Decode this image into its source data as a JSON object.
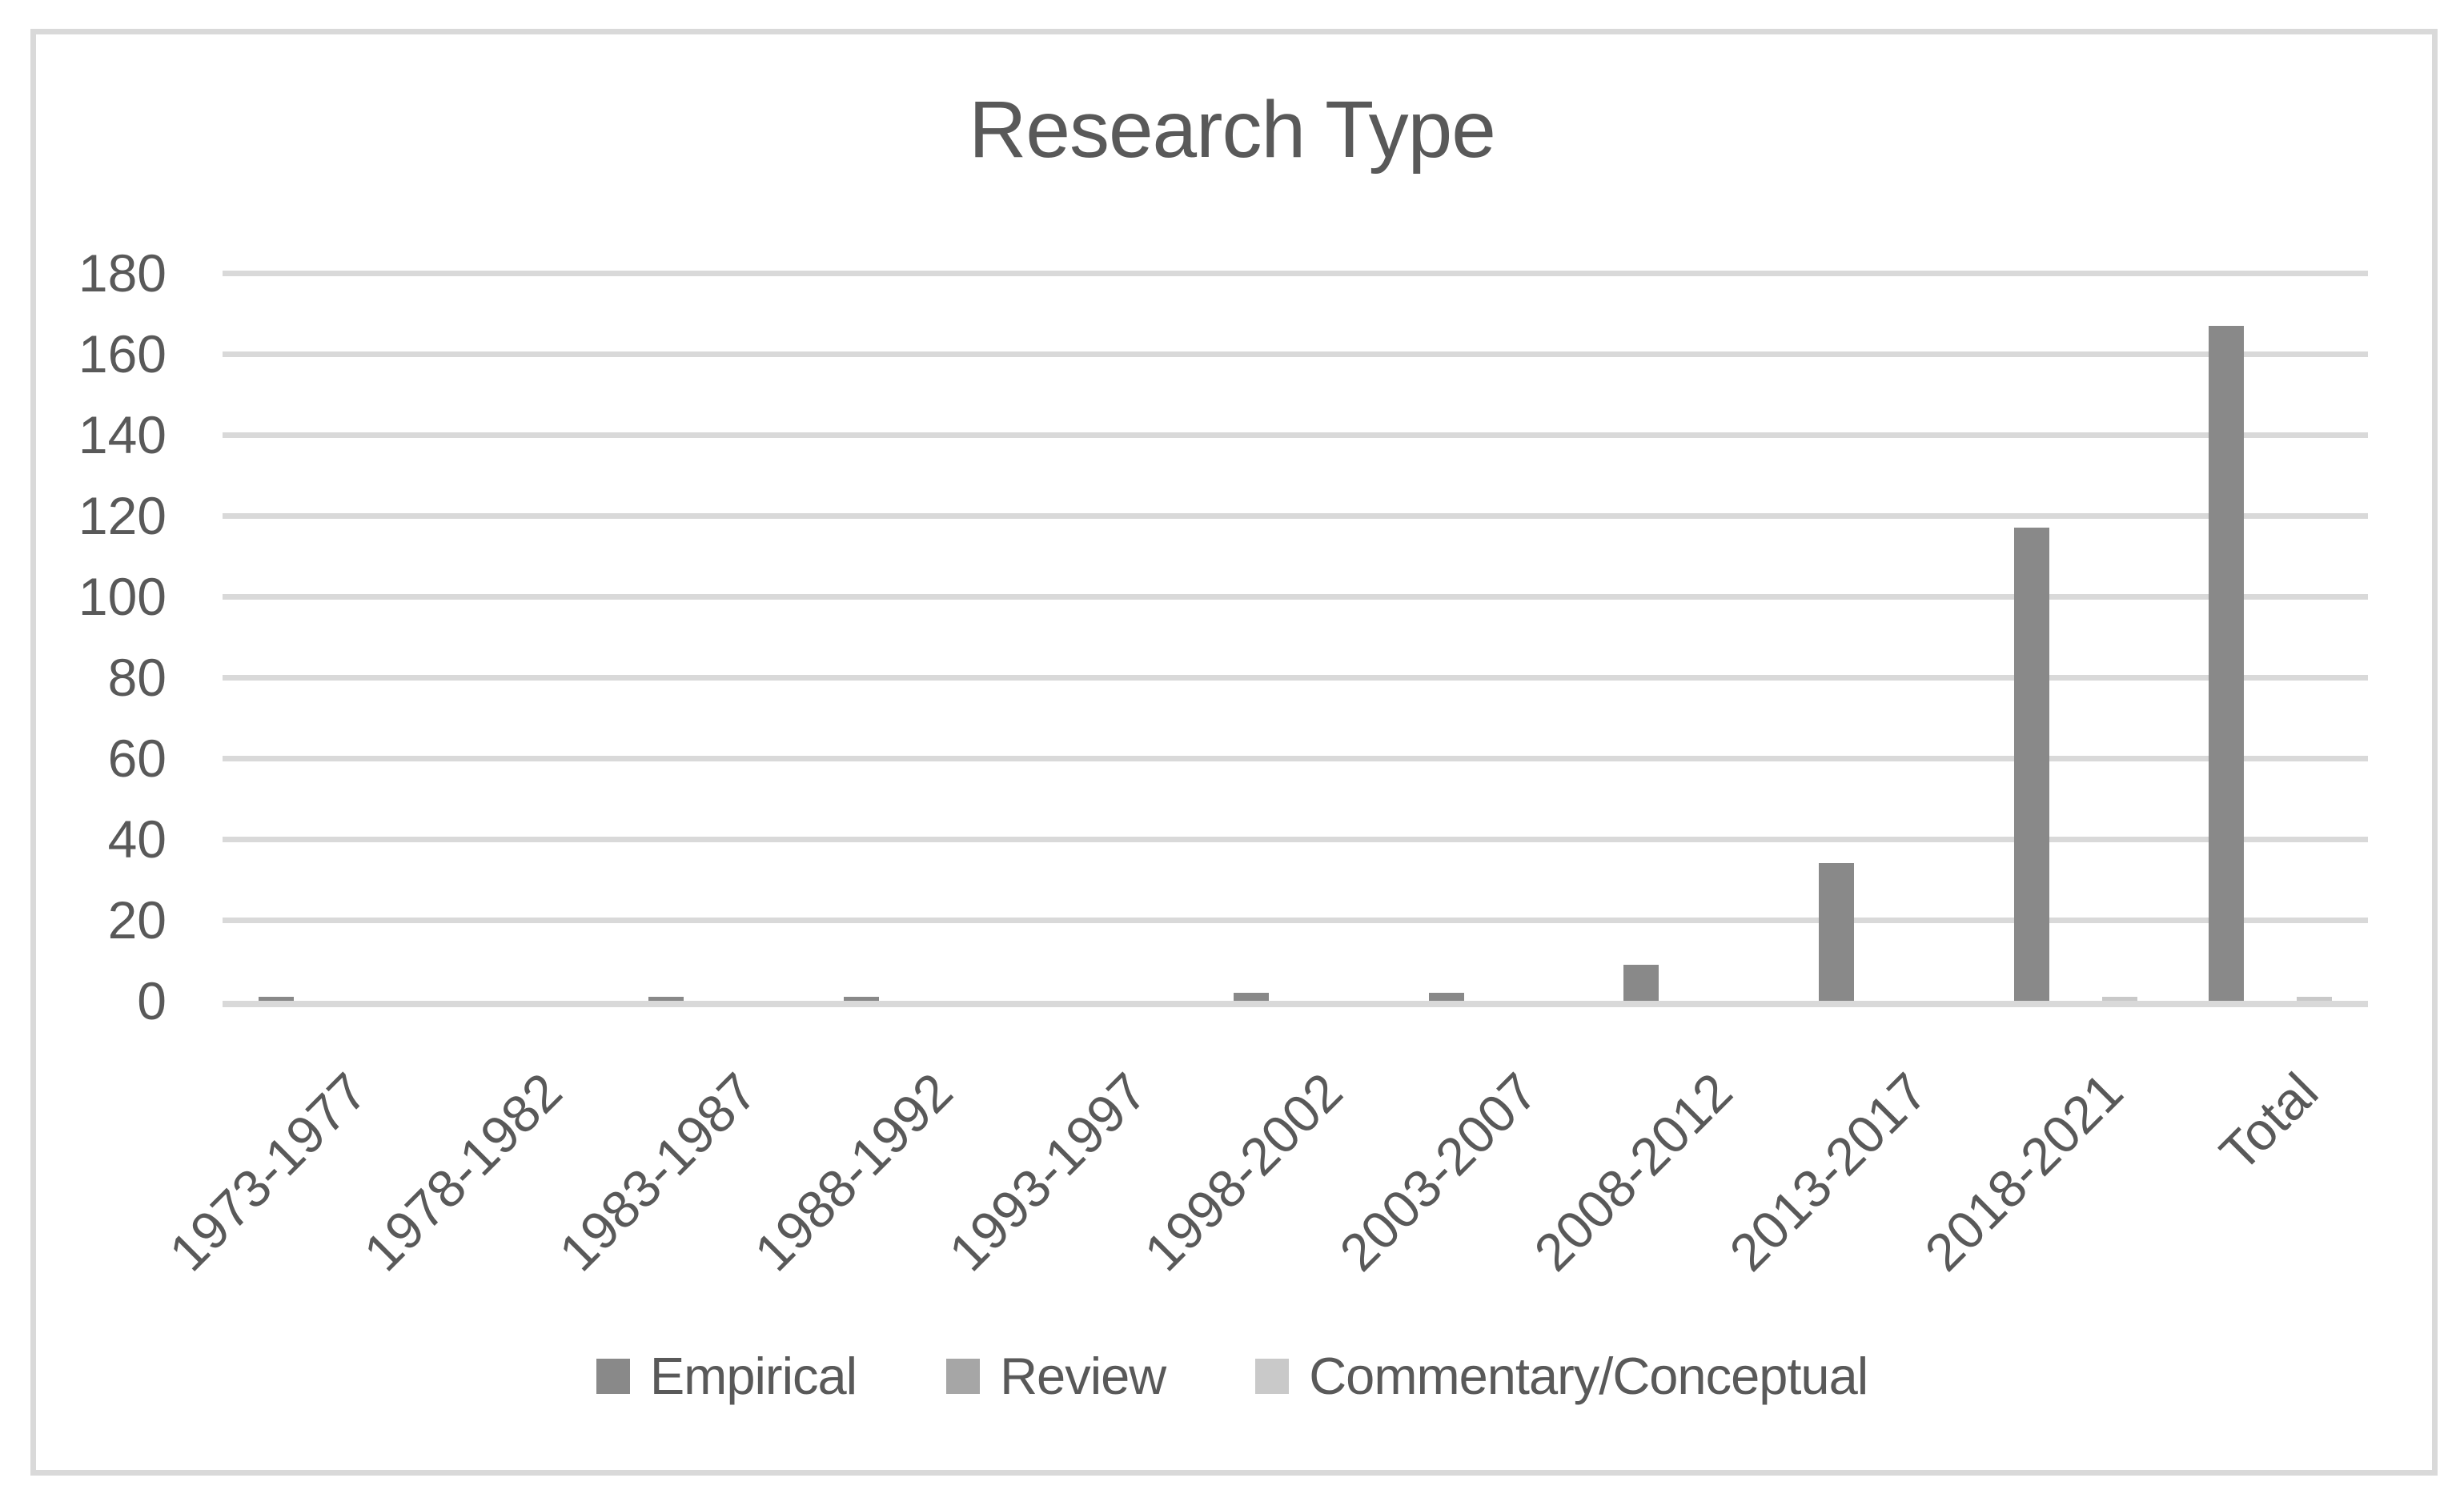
{
  "chart_data": {
    "type": "bar",
    "title": "Research Type",
    "categories": [
      "1973-1977",
      "1978-1982",
      "1983-1987",
      "1988-1992",
      "1993-1997",
      "1998-2002",
      "2003-2007",
      "2008-2012",
      "2013-2017",
      "2018-2021",
      "Total"
    ],
    "series": [
      {
        "name": "Empirical",
        "color": "#898989",
        "values": [
          1,
          0,
          1,
          1,
          0,
          2,
          2,
          9,
          34,
          117,
          167
        ]
      },
      {
        "name": "Review",
        "color": "#a6a6a6",
        "values": [
          0,
          0,
          0,
          0,
          0,
          0,
          0,
          0,
          0,
          0,
          0
        ]
      },
      {
        "name": "Commentary/Conceptual",
        "color": "#c9c9c9",
        "values": [
          0,
          0,
          0,
          0,
          0,
          0,
          0,
          0,
          0,
          1,
          1
        ]
      }
    ],
    "ylim": [
      0,
      180
    ],
    "yticks": [
      0,
      20,
      40,
      60,
      80,
      100,
      120,
      140,
      160,
      180
    ],
    "grid": true,
    "legend_position": "bottom",
    "text_color": "#595959",
    "line_color": "#d9d9d9",
    "background_color": "#ffffff"
  }
}
